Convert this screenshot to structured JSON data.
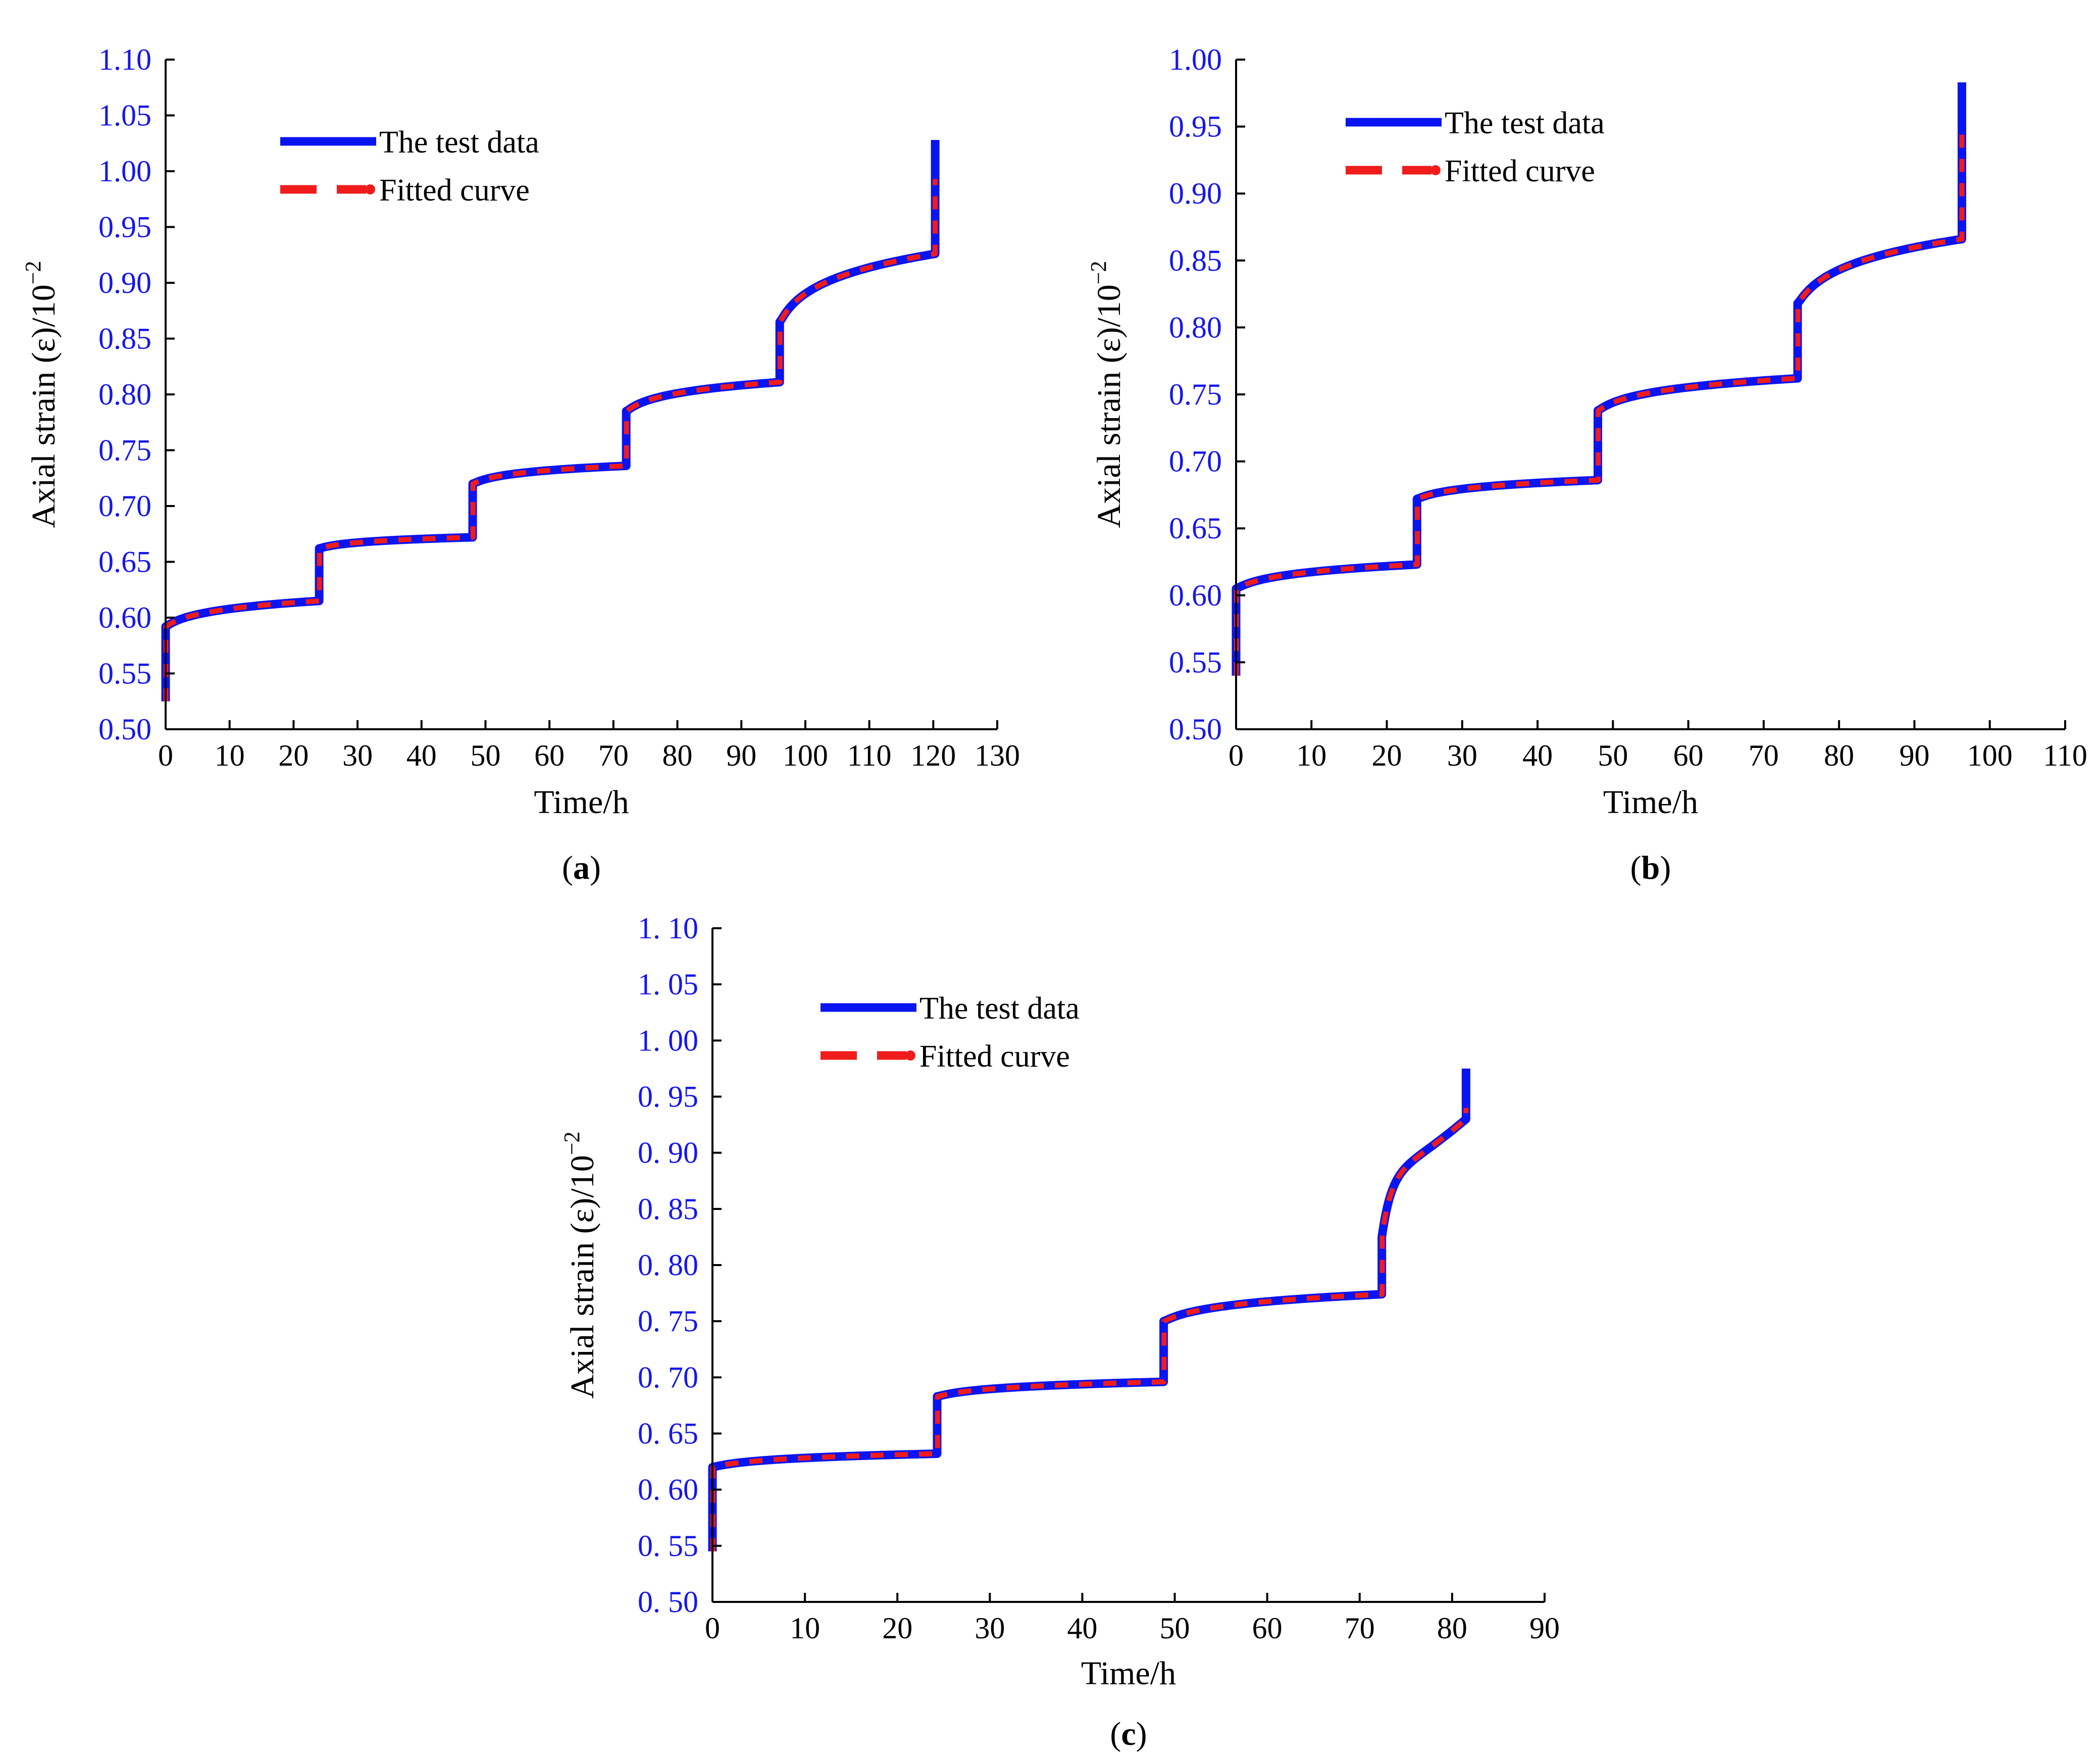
{
  "colors": {
    "test": "#0a14f0",
    "fit": "#f01c1c",
    "axis_text": "#1515ee",
    "axis": "#000000"
  },
  "chart_data": [
    {
      "id": "a",
      "type": "line",
      "panel_label": {
        "open": "(",
        "letter": "a",
        "close": ")"
      },
      "xlabel": "Time/h",
      "ylabel": {
        "main": "Axial strain (ε)/10",
        "exp": "−2"
      },
      "xlim": [
        0,
        130
      ],
      "ylim": [
        0.5,
        1.1
      ],
      "xticks": [
        "0",
        "10",
        "20",
        "30",
        "40",
        "50",
        "60",
        "70",
        "80",
        "90",
        "100",
        "110",
        "120",
        "130"
      ],
      "yticks": [
        "0.50",
        "0.55",
        "0.60",
        "0.65",
        "0.70",
        "0.75",
        "0.80",
        "0.85",
        "0.90",
        "0.95",
        "1.00",
        "1.05",
        "1.10"
      ],
      "legend": {
        "placement": "top-left",
        "entries": [
          "The test data",
          "Fitted curve"
        ]
      },
      "stages": [
        {
          "t0": 0,
          "t1": 24,
          "start": 0.525,
          "jump": 0.592,
          "end": 0.615,
          "shape": "log",
          "tip": null
        },
        {
          "t0": 24,
          "t1": 48,
          "start": 0.615,
          "jump": 0.662,
          "end": 0.672,
          "shape": "log",
          "tip": null
        },
        {
          "t0": 48,
          "t1": 72,
          "start": 0.672,
          "jump": 0.72,
          "end": 0.736,
          "shape": "log",
          "tip": null
        },
        {
          "t0": 72,
          "t1": 96,
          "start": 0.736,
          "jump": 0.785,
          "end": 0.811,
          "shape": "log",
          "tip": null
        },
        {
          "t0": 96,
          "t1": 120.3,
          "start": 0.811,
          "jump": 0.865,
          "end": 0.926,
          "shape": "log",
          "tip": 1.028
        }
      ],
      "series": [
        {
          "name": "The test data",
          "style": "solid"
        },
        {
          "name": "Fitted curve",
          "style": "dashed"
        }
      ]
    },
    {
      "id": "b",
      "type": "line",
      "panel_label": {
        "open": "(",
        "letter": "b",
        "close": ")"
      },
      "xlabel": "Time/h",
      "ylabel": {
        "main": "Axial strain (ε)/10",
        "exp": "−2"
      },
      "xlim": [
        0,
        110
      ],
      "ylim": [
        0.5,
        1.0
      ],
      "xticks": [
        "0",
        "10",
        "20",
        "30",
        "40",
        "50",
        "60",
        "70",
        "80",
        "90",
        "100",
        "110"
      ],
      "yticks": [
        "0.50",
        "0.55",
        "0.60",
        "0.65",
        "0.70",
        "0.75",
        "0.80",
        "0.85",
        "0.90",
        "0.95",
        "1.00"
      ],
      "legend": {
        "placement": "top-left",
        "entries": [
          "The test data",
          "Fitted curve"
        ]
      },
      "stages": [
        {
          "t0": 0,
          "t1": 24,
          "start": 0.54,
          "jump": 0.605,
          "end": 0.623,
          "shape": "log",
          "tip": null
        },
        {
          "t0": 24,
          "t1": 48,
          "start": 0.623,
          "jump": 0.672,
          "end": 0.686,
          "shape": "log",
          "tip": null
        },
        {
          "t0": 48,
          "t1": 74.5,
          "start": 0.686,
          "jump": 0.738,
          "end": 0.762,
          "shape": "log",
          "tip": null
        },
        {
          "t0": 74.5,
          "t1": 96.3,
          "start": 0.762,
          "jump": 0.818,
          "end": 0.866,
          "shape": "log",
          "tip": 0.983
        }
      ],
      "series": [
        {
          "name": "The test data",
          "style": "solid"
        },
        {
          "name": "Fitted curve",
          "style": "dashed"
        }
      ]
    },
    {
      "id": "c",
      "type": "line",
      "panel_label": {
        "open": "(",
        "letter": "c",
        "close": ")"
      },
      "xlabel": "Time/h",
      "ylabel": {
        "main": "Axial strain (ε)/10",
        "exp": "−2"
      },
      "xlim": [
        0,
        90
      ],
      "ylim": [
        0.5,
        1.1
      ],
      "xticks": [
        "0",
        "10",
        "20",
        "30",
        "40",
        "50",
        "60",
        "70",
        "80",
        "90"
      ],
      "yticks": [
        "0. 50",
        "0. 55",
        "0. 60",
        "0. 65",
        "0. 70",
        "0. 75",
        "0. 80",
        "0. 85",
        "0. 90",
        "0. 95",
        "1. 00",
        "1. 05",
        "1. 10"
      ],
      "legend": {
        "placement": "top-left",
        "entries": [
          "The test data",
          "Fitted curve"
        ]
      },
      "stages": [
        {
          "t0": 0,
          "t1": 24.3,
          "start": 0.545,
          "jump": 0.62,
          "end": 0.632,
          "shape": "log",
          "tip": null
        },
        {
          "t0": 24.3,
          "t1": 48.8,
          "start": 0.632,
          "jump": 0.683,
          "end": 0.696,
          "shape": "log",
          "tip": null
        },
        {
          "t0": 48.8,
          "t1": 72.4,
          "start": 0.696,
          "jump": 0.75,
          "end": 0.774,
          "shape": "log",
          "tip": null
        },
        {
          "t0": 72.4,
          "t1": 81.5,
          "start": 0.774,
          "jump": 0.825,
          "end": 0.93,
          "shape": "accel",
          "tip": 0.975
        }
      ],
      "series": [
        {
          "name": "The test data",
          "style": "solid"
        },
        {
          "name": "Fitted curve",
          "style": "dashed"
        }
      ]
    }
  ]
}
